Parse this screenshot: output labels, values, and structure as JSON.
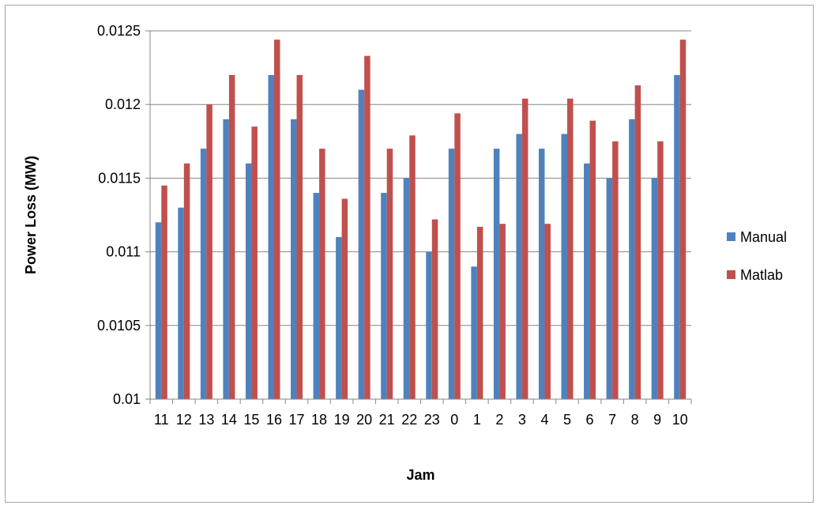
{
  "chart_data": {
    "type": "bar",
    "title": "",
    "xlabel": "Jam",
    "ylabel": "Power Loss (MW)",
    "ylim": [
      0.01,
      0.0125
    ],
    "yticks": [
      "0.01",
      "0.0105",
      "0.011",
      "0.0115",
      "0.012",
      "0.0125"
    ],
    "ytick_values": [
      0.01,
      0.0105,
      0.011,
      0.0115,
      0.012,
      0.0125
    ],
    "grid": true,
    "legend_position": "right",
    "categories": [
      "11",
      "12",
      "13",
      "14",
      "15",
      "16",
      "17",
      "18",
      "19",
      "20",
      "21",
      "22",
      "23",
      "0",
      "1",
      "2",
      "3",
      "4",
      "5",
      "6",
      "7",
      "8",
      "9",
      "10"
    ],
    "series": [
      {
        "name": "Manual",
        "color": "#4f81bd",
        "values": [
          0.0112,
          0.0113,
          0.0117,
          0.0119,
          0.0116,
          0.0122,
          0.0119,
          0.0114,
          0.0111,
          0.0121,
          0.0114,
          0.0115,
          0.011,
          0.0117,
          0.0109,
          0.0117,
          0.0118,
          0.0117,
          0.0118,
          0.0116,
          0.0115,
          0.0119,
          0.0115,
          0.0122
        ]
      },
      {
        "name": "Matlab",
        "color": "#c0504d",
        "values": [
          0.01145,
          0.0116,
          0.012,
          0.0122,
          0.01185,
          0.01244,
          0.0122,
          0.0117,
          0.01136,
          0.01233,
          0.0117,
          0.01179,
          0.01122,
          0.01194,
          0.01117,
          0.01119,
          0.01204,
          0.01119,
          0.01204,
          0.01189,
          0.01175,
          0.01213,
          0.01175,
          0.01244
        ]
      }
    ]
  }
}
